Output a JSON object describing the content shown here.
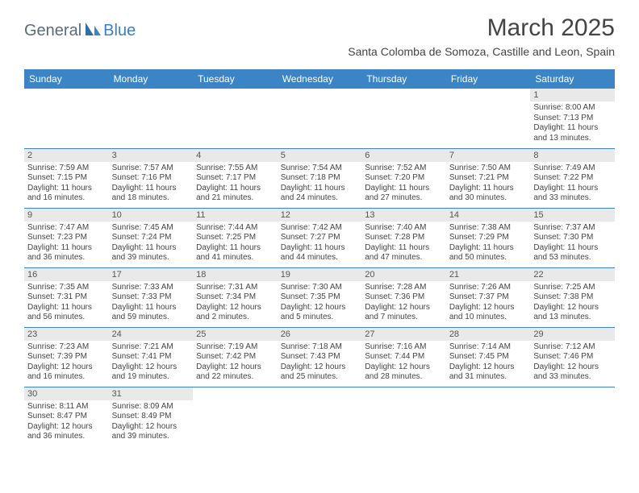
{
  "logo": {
    "part1": "General",
    "part2": "Blue"
  },
  "title": "March 2025",
  "location": "Santa Colomba de Somoza, Castille and Leon, Spain",
  "colors": {
    "header_bg": "#3b85c6",
    "header_text": "#ffffff",
    "day_label_bg": "#e9e9e9",
    "row_border": "#3b85c6",
    "body_text": "#444444",
    "logo_gray": "#5a6b78",
    "logo_blue": "#3b7fc4"
  },
  "weekdays": [
    "Sunday",
    "Monday",
    "Tuesday",
    "Wednesday",
    "Thursday",
    "Friday",
    "Saturday"
  ],
  "weeks": [
    [
      null,
      null,
      null,
      null,
      null,
      null,
      {
        "n": "1",
        "l": [
          "Sunrise: 8:00 AM",
          "Sunset: 7:13 PM",
          "Daylight: 11 hours",
          "and 13 minutes."
        ]
      }
    ],
    [
      {
        "n": "2",
        "l": [
          "Sunrise: 7:59 AM",
          "Sunset: 7:15 PM",
          "Daylight: 11 hours",
          "and 16 minutes."
        ]
      },
      {
        "n": "3",
        "l": [
          "Sunrise: 7:57 AM",
          "Sunset: 7:16 PM",
          "Daylight: 11 hours",
          "and 18 minutes."
        ]
      },
      {
        "n": "4",
        "l": [
          "Sunrise: 7:55 AM",
          "Sunset: 7:17 PM",
          "Daylight: 11 hours",
          "and 21 minutes."
        ]
      },
      {
        "n": "5",
        "l": [
          "Sunrise: 7:54 AM",
          "Sunset: 7:18 PM",
          "Daylight: 11 hours",
          "and 24 minutes."
        ]
      },
      {
        "n": "6",
        "l": [
          "Sunrise: 7:52 AM",
          "Sunset: 7:20 PM",
          "Daylight: 11 hours",
          "and 27 minutes."
        ]
      },
      {
        "n": "7",
        "l": [
          "Sunrise: 7:50 AM",
          "Sunset: 7:21 PM",
          "Daylight: 11 hours",
          "and 30 minutes."
        ]
      },
      {
        "n": "8",
        "l": [
          "Sunrise: 7:49 AM",
          "Sunset: 7:22 PM",
          "Daylight: 11 hours",
          "and 33 minutes."
        ]
      }
    ],
    [
      {
        "n": "9",
        "l": [
          "Sunrise: 7:47 AM",
          "Sunset: 7:23 PM",
          "Daylight: 11 hours",
          "and 36 minutes."
        ]
      },
      {
        "n": "10",
        "l": [
          "Sunrise: 7:45 AM",
          "Sunset: 7:24 PM",
          "Daylight: 11 hours",
          "and 39 minutes."
        ]
      },
      {
        "n": "11",
        "l": [
          "Sunrise: 7:44 AM",
          "Sunset: 7:25 PM",
          "Daylight: 11 hours",
          "and 41 minutes."
        ]
      },
      {
        "n": "12",
        "l": [
          "Sunrise: 7:42 AM",
          "Sunset: 7:27 PM",
          "Daylight: 11 hours",
          "and 44 minutes."
        ]
      },
      {
        "n": "13",
        "l": [
          "Sunrise: 7:40 AM",
          "Sunset: 7:28 PM",
          "Daylight: 11 hours",
          "and 47 minutes."
        ]
      },
      {
        "n": "14",
        "l": [
          "Sunrise: 7:38 AM",
          "Sunset: 7:29 PM",
          "Daylight: 11 hours",
          "and 50 minutes."
        ]
      },
      {
        "n": "15",
        "l": [
          "Sunrise: 7:37 AM",
          "Sunset: 7:30 PM",
          "Daylight: 11 hours",
          "and 53 minutes."
        ]
      }
    ],
    [
      {
        "n": "16",
        "l": [
          "Sunrise: 7:35 AM",
          "Sunset: 7:31 PM",
          "Daylight: 11 hours",
          "and 56 minutes."
        ]
      },
      {
        "n": "17",
        "l": [
          "Sunrise: 7:33 AM",
          "Sunset: 7:33 PM",
          "Daylight: 11 hours",
          "and 59 minutes."
        ]
      },
      {
        "n": "18",
        "l": [
          "Sunrise: 7:31 AM",
          "Sunset: 7:34 PM",
          "Daylight: 12 hours",
          "and 2 minutes."
        ]
      },
      {
        "n": "19",
        "l": [
          "Sunrise: 7:30 AM",
          "Sunset: 7:35 PM",
          "Daylight: 12 hours",
          "and 5 minutes."
        ]
      },
      {
        "n": "20",
        "l": [
          "Sunrise: 7:28 AM",
          "Sunset: 7:36 PM",
          "Daylight: 12 hours",
          "and 7 minutes."
        ]
      },
      {
        "n": "21",
        "l": [
          "Sunrise: 7:26 AM",
          "Sunset: 7:37 PM",
          "Daylight: 12 hours",
          "and 10 minutes."
        ]
      },
      {
        "n": "22",
        "l": [
          "Sunrise: 7:25 AM",
          "Sunset: 7:38 PM",
          "Daylight: 12 hours",
          "and 13 minutes."
        ]
      }
    ],
    [
      {
        "n": "23",
        "l": [
          "Sunrise: 7:23 AM",
          "Sunset: 7:39 PM",
          "Daylight: 12 hours",
          "and 16 minutes."
        ]
      },
      {
        "n": "24",
        "l": [
          "Sunrise: 7:21 AM",
          "Sunset: 7:41 PM",
          "Daylight: 12 hours",
          "and 19 minutes."
        ]
      },
      {
        "n": "25",
        "l": [
          "Sunrise: 7:19 AM",
          "Sunset: 7:42 PM",
          "Daylight: 12 hours",
          "and 22 minutes."
        ]
      },
      {
        "n": "26",
        "l": [
          "Sunrise: 7:18 AM",
          "Sunset: 7:43 PM",
          "Daylight: 12 hours",
          "and 25 minutes."
        ]
      },
      {
        "n": "27",
        "l": [
          "Sunrise: 7:16 AM",
          "Sunset: 7:44 PM",
          "Daylight: 12 hours",
          "and 28 minutes."
        ]
      },
      {
        "n": "28",
        "l": [
          "Sunrise: 7:14 AM",
          "Sunset: 7:45 PM",
          "Daylight: 12 hours",
          "and 31 minutes."
        ]
      },
      {
        "n": "29",
        "l": [
          "Sunrise: 7:12 AM",
          "Sunset: 7:46 PM",
          "Daylight: 12 hours",
          "and 33 minutes."
        ]
      }
    ],
    [
      {
        "n": "30",
        "l": [
          "Sunrise: 8:11 AM",
          "Sunset: 8:47 PM",
          "Daylight: 12 hours",
          "and 36 minutes."
        ]
      },
      {
        "n": "31",
        "l": [
          "Sunrise: 8:09 AM",
          "Sunset: 8:49 PM",
          "Daylight: 12 hours",
          "and 39 minutes."
        ]
      },
      null,
      null,
      null,
      null,
      null
    ]
  ]
}
